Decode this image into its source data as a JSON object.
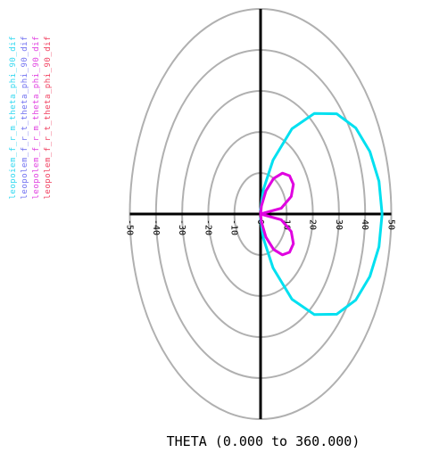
{
  "chart_data": {
    "type": "polar",
    "xlabel": "THETA (0.000 to 360.000)",
    "radial_ticks": [
      "-50",
      "-40",
      "-30",
      "-20",
      "-10",
      "0",
      "10",
      "20",
      "30",
      "40",
      "50"
    ],
    "rlim": [
      0,
      50
    ],
    "ring_values": [
      10,
      20,
      30,
      40,
      50
    ],
    "grid": true,
    "colors": {
      "rings": "#b0b0b0",
      "axes": "#000000",
      "cyan": "#00e0f0",
      "magenta": "#e000e0"
    },
    "legend": {
      "placement": "left-vertical",
      "entries": [
        {
          "text": "leopoiem_f_r_m_theta_phi_90_dif",
          "color": "#30d8f0"
        },
        {
          "text": "leopolem_f_r_t_theta_phi_90_dif",
          "color": "#7070f0"
        },
        {
          "text": "leopolem_f_r_m_theta_phi_90_dif",
          "color": "#e040e0"
        },
        {
          "text": "leopolem_f_r_t_theta_phi_90_dif",
          "color": "#f04060"
        }
      ]
    },
    "series": [
      {
        "color": "#00e0f0",
        "theta_deg": [
          90,
          100,
          110,
          120,
          130,
          140,
          150,
          160,
          170,
          180,
          190,
          200,
          210,
          220,
          230,
          240,
          250,
          260,
          270
        ],
        "r": [
          1,
          6,
          14,
          24,
          32,
          38,
          42,
          44.5,
          46,
          46.5,
          46,
          44.5,
          42,
          38,
          32,
          24,
          14,
          6,
          1
        ]
      },
      {
        "color": "#e000e0",
        "theta_deg": [
          90,
          100,
          110,
          120,
          130,
          140,
          150,
          160,
          170,
          180,
          190,
          200,
          210,
          220,
          230,
          240,
          250,
          260,
          270
        ],
        "r": [
          0,
          2,
          6,
          10,
          13,
          14.5,
          14.5,
          12.5,
          8,
          0,
          8,
          12.5,
          14.5,
          14.5,
          13,
          10,
          6,
          2,
          0
        ]
      }
    ]
  }
}
